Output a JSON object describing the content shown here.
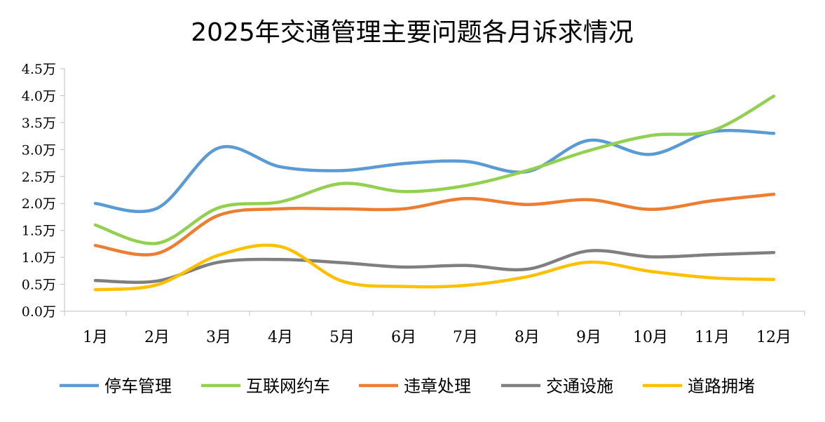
{
  "chart_data": {
    "type": "line",
    "title": "2025年交通管理主要问题各月诉求情况",
    "xlabel": "",
    "ylabel": "",
    "categories": [
      "1月",
      "2月",
      "3月",
      "4月",
      "5月",
      "6月",
      "7月",
      "8月",
      "9月",
      "10月",
      "11月",
      "12月"
    ],
    "yticks": [
      "0.0万",
      "0.5万",
      "1.0万",
      "1.5万",
      "2.0万",
      "2.5万",
      "3.0万",
      "3.5万",
      "4.0万",
      "4.5万"
    ],
    "ylim": [
      0,
      4.5
    ],
    "unit": "万",
    "grid": false,
    "smooth": true,
    "legend_position": "bottom",
    "series": [
      {
        "name": "停车管理",
        "color": "#5B9BD5",
        "values": [
          2.0,
          1.91,
          3.03,
          2.68,
          2.61,
          2.74,
          2.78,
          2.59,
          3.17,
          2.91,
          3.33,
          3.3
        ]
      },
      {
        "name": "互联网约车",
        "color": "#92D050",
        "values": [
          1.6,
          1.26,
          1.92,
          2.03,
          2.37,
          2.22,
          2.33,
          2.61,
          2.98,
          3.26,
          3.35,
          3.99
        ]
      },
      {
        "name": "违章处理",
        "color": "#ED7D31",
        "values": [
          1.22,
          1.07,
          1.78,
          1.9,
          1.9,
          1.9,
          2.09,
          1.98,
          2.07,
          1.89,
          2.05,
          2.17
        ]
      },
      {
        "name": "交通设施",
        "color": "#7F7F7F",
        "values": [
          0.57,
          0.56,
          0.91,
          0.96,
          0.9,
          0.82,
          0.85,
          0.78,
          1.12,
          1.01,
          1.05,
          1.09
        ]
      },
      {
        "name": "道路拥堵",
        "color": "#FFC000",
        "values": [
          0.4,
          0.49,
          1.04,
          1.2,
          0.56,
          0.46,
          0.48,
          0.64,
          0.91,
          0.74,
          0.62,
          0.59
        ]
      }
    ]
  }
}
